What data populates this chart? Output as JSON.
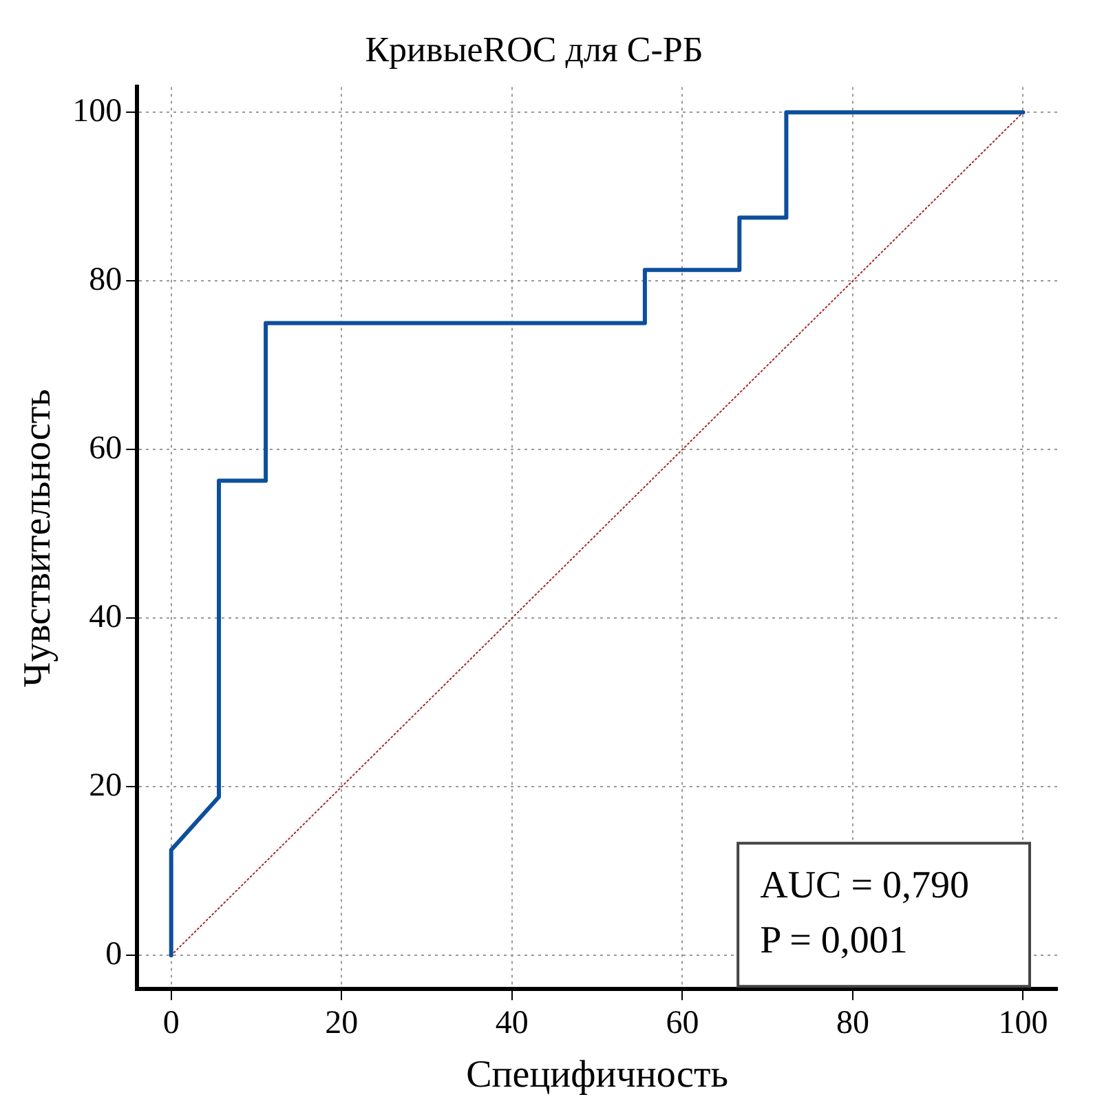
{
  "chart_data": {
    "type": "line",
    "title": "КривыеROC для С-РБ",
    "xlabel": "Специфичность",
    "ylabel": "Чувствительность",
    "series": [
      {
        "type": "line",
        "color": "#0d4f9c",
        "x": [
          0,
          0,
          5.6,
          5.6,
          11.1,
          11.1,
          55.6,
          55.6,
          66.7,
          66.7,
          72.2,
          72.2,
          100
        ],
        "values": [
          0,
          12.5,
          18.8,
          56.3,
          56.3,
          75,
          75,
          81.3,
          81.3,
          87.5,
          87.5,
          100,
          100
        ],
        "line_style": "solid"
      },
      {
        "type": "line",
        "color": "#a52a2a",
        "x": [
          0,
          100
        ],
        "values": [
          0,
          100
        ],
        "line_style": "dotted"
      }
    ],
    "xlim": [
      -4,
      104
    ],
    "ylim": [
      -4,
      103
    ],
    "xticks": [
      0,
      20,
      40,
      60,
      80,
      100
    ],
    "yticks": [
      0,
      20,
      40,
      60,
      80,
      100
    ],
    "grid": true,
    "legend": false,
    "marker": "none",
    "annotations": [
      "AUC = 0,790",
      "P = 0,001"
    ]
  }
}
